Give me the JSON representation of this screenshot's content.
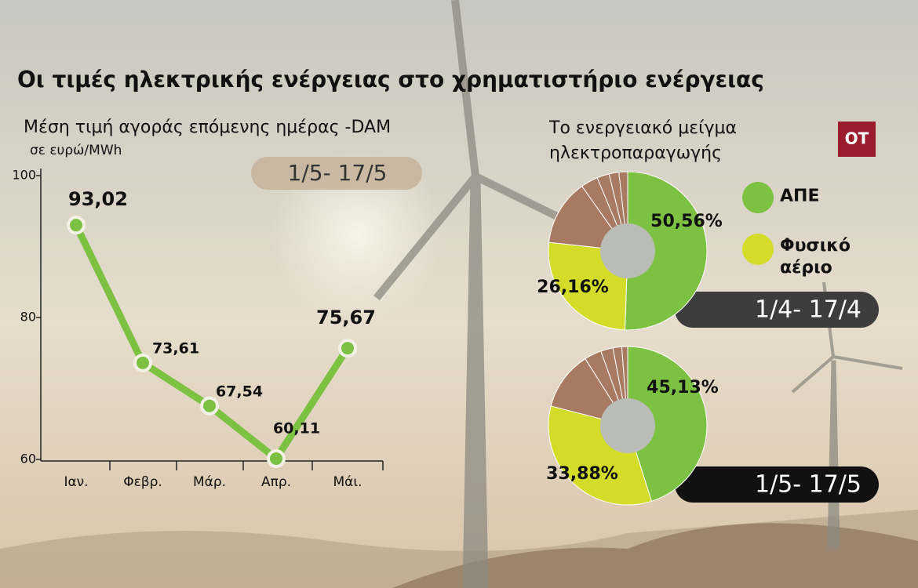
{
  "title": "Οι τιμές ηλεκτρικής ενέργειας στο χρηματιστήριο ενέργειας",
  "logo": "ΟΤ",
  "chart_data": [
    {
      "type": "line",
      "title": "Μέση τιμή αγοράς επόμενης ημέρας -DAM",
      "subtitle": "σε ευρώ/MWh",
      "annotation": "1/5- 17/5",
      "categories": [
        "Ιαν.",
        "Φεβρ.",
        "Μάρ.",
        "Απρ.",
        "Μάι."
      ],
      "values": [
        93.02,
        73.61,
        67.54,
        60.11,
        75.67
      ],
      "value_labels": [
        "93,02",
        "73,61",
        "67,54",
        "60,11",
        "75,67"
      ],
      "color": "#7dc142",
      "ylim": [
        60,
        100
      ],
      "yticks": [
        60,
        80,
        100
      ]
    },
    {
      "type": "pie",
      "title": "Το ενεργειακό μείγμα ηλεκτροπαραγωγής",
      "period": "1/4- 17/4",
      "categories": [
        "ΑΠΕ",
        "Φυσικό αέριο",
        null,
        null,
        null,
        null,
        null
      ],
      "values": [
        50.56,
        26.16,
        13.5,
        3.5,
        2.5,
        2,
        1.78
      ],
      "value_labels": [
        "50,56%",
        "26,16%",
        null,
        null,
        null,
        null,
        null
      ],
      "colors": [
        "#7dc142",
        "#d4dc2a",
        "#a97a62",
        "#a97a62",
        "#a97a62",
        "#a97a62",
        "#a97a62"
      ]
    },
    {
      "type": "pie",
      "period": "1/5- 17/5",
      "values": [
        45.13,
        33.88,
        12,
        3.5,
        2.5,
        1.8,
        1.19
      ],
      "value_labels": [
        "45,13%",
        "33,88%",
        null,
        null,
        null,
        null,
        null
      ],
      "colors": [
        "#7dc142",
        "#d4dc2a",
        "#a97a62",
        "#a97a62",
        "#a97a62",
        "#a97a62",
        "#a97a62"
      ]
    }
  ]
}
